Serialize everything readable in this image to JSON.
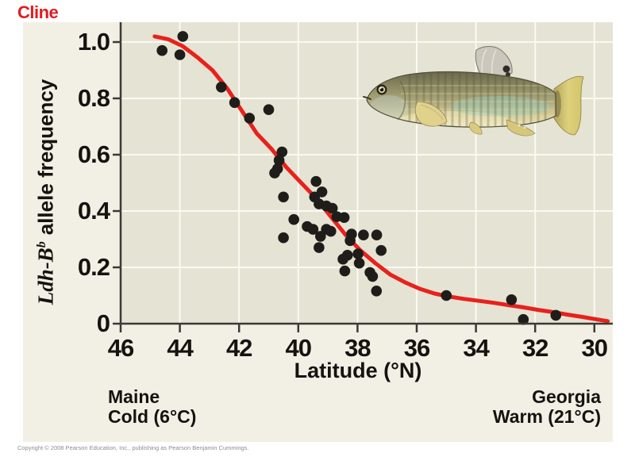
{
  "slide": {
    "title": "Cline"
  },
  "colors": {
    "title_red": "#e31b1d",
    "curve_red": "#e8211c",
    "plot_bg": "#e5e3d3",
    "panel_bg": "#f2efe5",
    "grid": "#fbfaf3",
    "axis": "#3a3a36",
    "point": "#1e1d19",
    "text": "#14130f",
    "copyright_gray": "#8f8c84"
  },
  "icons": {
    "fish": "mummichog-fish-illustration"
  },
  "chart_data": {
    "type": "scatter",
    "title": "Cline",
    "xlabel": "Latitude (°N)",
    "ylabel": "Ldh-Bᵇ allele frequency",
    "ylabel_parts": {
      "gene": "Ldh-B",
      "gene_sup": "b",
      "rest": "allele frequency"
    },
    "x_axis_reversed": true,
    "xlim": [
      46,
      29.4
    ],
    "ylim": [
      0,
      1.07
    ],
    "grid": "on",
    "x_ticks": [
      46,
      44,
      42,
      40,
      38,
      36,
      34,
      32,
      30
    ],
    "x_tick_labels": [
      "46",
      "44",
      "42",
      "40",
      "38",
      "36",
      "34",
      "32",
      "30"
    ],
    "y_ticks": [
      0,
      0.2,
      0.4,
      0.6,
      0.8,
      1.0
    ],
    "y_tick_labels": [
      "0",
      "0.2",
      "0.4",
      "0.6",
      "0.8",
      "1.0"
    ],
    "points": [
      [
        44.6,
        0.97
      ],
      [
        43.9,
        1.02
      ],
      [
        44.0,
        0.955
      ],
      [
        42.6,
        0.84
      ],
      [
        42.15,
        0.785
      ],
      [
        41.65,
        0.73
      ],
      [
        41.0,
        0.76
      ],
      [
        40.55,
        0.61
      ],
      [
        40.65,
        0.58
      ],
      [
        40.7,
        0.55
      ],
      [
        40.8,
        0.535
      ],
      [
        40.5,
        0.45
      ],
      [
        40.15,
        0.37
      ],
      [
        40.5,
        0.305
      ],
      [
        39.4,
        0.505
      ],
      [
        39.45,
        0.45
      ],
      [
        39.2,
        0.468
      ],
      [
        39.3,
        0.425
      ],
      [
        39.05,
        0.418
      ],
      [
        38.85,
        0.41
      ],
      [
        38.7,
        0.38
      ],
      [
        38.45,
        0.377
      ],
      [
        39.7,
        0.345
      ],
      [
        39.5,
        0.335
      ],
      [
        39.05,
        0.335
      ],
      [
        38.9,
        0.328
      ],
      [
        39.25,
        0.31
      ],
      [
        39.3,
        0.27
      ],
      [
        38.2,
        0.318
      ],
      [
        38.25,
        0.295
      ],
      [
        37.8,
        0.315
      ],
      [
        37.35,
        0.315
      ],
      [
        37.2,
        0.26
      ],
      [
        38.34,
        0.243
      ],
      [
        38.49,
        0.229
      ],
      [
        37.98,
        0.248
      ],
      [
        37.94,
        0.215
      ],
      [
        38.43,
        0.187
      ],
      [
        37.58,
        0.182
      ],
      [
        37.49,
        0.168
      ],
      [
        37.36,
        0.116
      ],
      [
        35.0,
        0.1
      ],
      [
        32.8,
        0.085
      ],
      [
        32.4,
        0.015
      ],
      [
        31.3,
        0.03
      ]
    ],
    "trend": [
      [
        44.85,
        1.02
      ],
      [
        44.4,
        1.01
      ],
      [
        43.9,
        0.985
      ],
      [
        43.4,
        0.945
      ],
      [
        42.9,
        0.9
      ],
      [
        42.4,
        0.835
      ],
      [
        41.9,
        0.755
      ],
      [
        41.4,
        0.675
      ],
      [
        40.9,
        0.62
      ],
      [
        40.4,
        0.555
      ],
      [
        39.9,
        0.5
      ],
      [
        39.4,
        0.445
      ],
      [
        38.9,
        0.38
      ],
      [
        38.4,
        0.315
      ],
      [
        37.9,
        0.26
      ],
      [
        37.4,
        0.215
      ],
      [
        36.9,
        0.175
      ],
      [
        36.4,
        0.147
      ],
      [
        35.9,
        0.124
      ],
      [
        35.4,
        0.107
      ],
      [
        34.9,
        0.096
      ],
      [
        34.4,
        0.088
      ],
      [
        33.9,
        0.081
      ],
      [
        33.4,
        0.074
      ],
      [
        32.9,
        0.066
      ],
      [
        32.4,
        0.058
      ],
      [
        31.9,
        0.049
      ],
      [
        31.4,
        0.041
      ],
      [
        30.9,
        0.032
      ],
      [
        30.4,
        0.024
      ],
      [
        29.9,
        0.015
      ],
      [
        29.55,
        0.009
      ]
    ]
  },
  "annotations": {
    "left_region": "Maine",
    "left_climate": "Cold (6°C)",
    "right_region": "Georgia",
    "right_climate": "Warm (21°C)"
  },
  "footer": {
    "copyright": "Copyright © 2008 Pearson Education, Inc., publishing as Pearson Benjamin Cummings."
  }
}
